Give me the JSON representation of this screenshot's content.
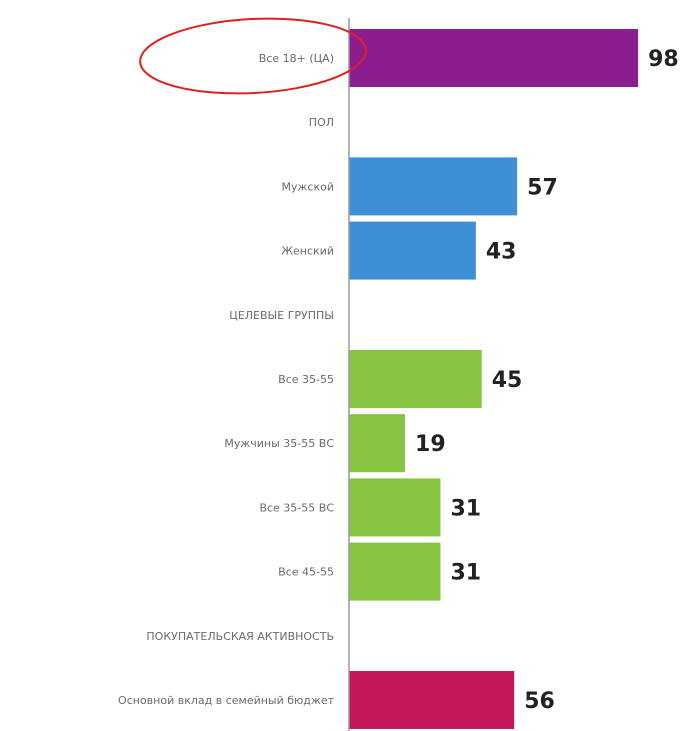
{
  "chart_data": {
    "type": "bar",
    "orientation": "horizontal",
    "rows": [
      {
        "label": "Все 18+ (ЦА)",
        "value": 98,
        "color": "#8c1d8f",
        "highlighted": true
      },
      {
        "label": "ПОЛ",
        "value": null
      },
      {
        "label": "Мужской",
        "value": 57,
        "color": "#3e8fd4"
      },
      {
        "label": "Женский",
        "value": 43,
        "color": "#3e8fd4"
      },
      {
        "label": "ЦЕЛЕВЫЕ ГРУППЫ",
        "value": null
      },
      {
        "label": "Все 35-55",
        "value": 45,
        "color": "#86c441"
      },
      {
        "label": "Мужчины 35-55 ВС",
        "value": 19,
        "color": "#86c441"
      },
      {
        "label": "Все 35-55 ВС",
        "value": 31,
        "color": "#86c441"
      },
      {
        "label": "Все 45-55",
        "value": 31,
        "color": "#86c441"
      },
      {
        "label": "ПОКУПАТЕЛЬСКАЯ АКТИВНОСТЬ",
        "value": null
      },
      {
        "label": "Основной вклад в семейный бюджет",
        "value": 56,
        "color": "#c2185b"
      }
    ],
    "xlim": [
      0,
      100
    ],
    "grid": false,
    "highlight_color": "#e02020"
  }
}
